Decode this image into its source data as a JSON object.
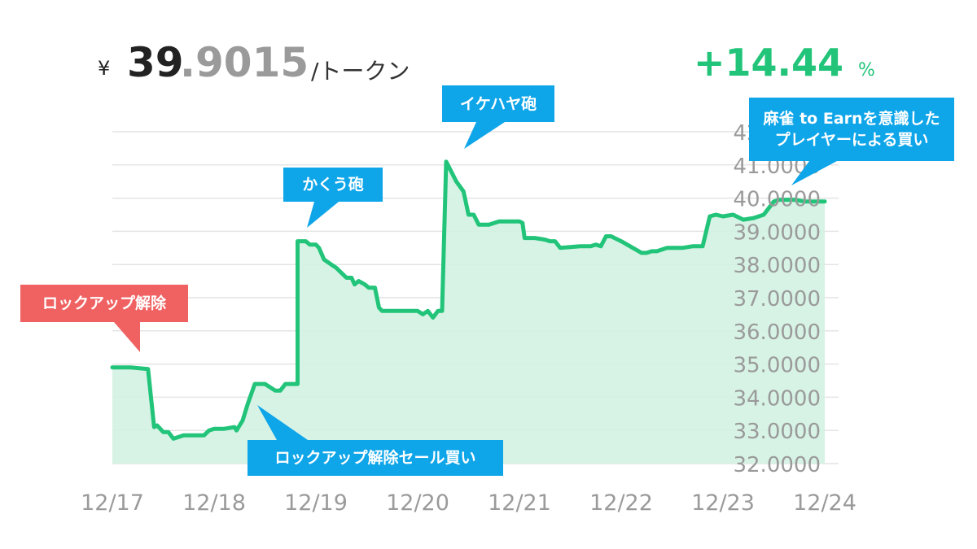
{
  "header": {
    "currency_symbol": "¥",
    "price_int": "39",
    "price_dec": ".9015",
    "unit": "/トークン",
    "change": "+14.44",
    "change_unit": "%"
  },
  "colors": {
    "line": "#22c47a",
    "area": "#d3f2e2",
    "grid": "#e4e4e4",
    "tick": "#9a9a9a",
    "callout_blue": "#0ea5e9",
    "callout_red": "#f06262"
  },
  "annotations": {
    "lockup": "ロックアップ解除",
    "lockup_sell": "ロックアップ解除セール買い",
    "kakuu": "かくう砲",
    "ikehaya": "イケハヤ砲",
    "mahjong_line1": "麻雀 to Earnを意識した",
    "mahjong_line2": "プレイヤーによる買い"
  },
  "chart_data": {
    "type": "area",
    "x_tick_labels": [
      "12/17",
      "12/18",
      "12/19",
      "12/20",
      "12/21",
      "12/22",
      "12/23",
      "12/24"
    ],
    "y_tick_labels": [
      "32.0000",
      "33.0000",
      "34.0000",
      "35.0000",
      "36.0000",
      "37.0000",
      "38.0000",
      "39.0000",
      "40.0000",
      "41.0000",
      "42.0000"
    ],
    "ylim": [
      32,
      42
    ],
    "xlim": [
      0,
      7
    ],
    "grid": true,
    "series": [
      {
        "x": [
          0,
          0.18,
          0.35,
          0.41,
          0.44,
          0.5,
          0.55,
          0.6,
          0.7,
          0.9,
          0.95,
          1.0,
          1.1,
          1.2,
          1.22,
          1.28,
          1.33,
          1.4,
          1.5,
          1.6,
          1.65,
          1.7,
          1.75,
          1.82,
          1.82,
          1.9,
          1.94,
          2.0,
          2.03,
          2.08,
          2.15,
          2.2,
          2.3,
          2.35,
          2.38,
          2.42,
          2.48,
          2.52,
          2.58,
          2.62,
          2.65,
          2.8,
          3.0,
          3.05,
          3.1,
          3.15,
          3.2,
          3.24,
          3.28,
          3.33,
          3.38,
          3.45,
          3.5,
          3.55,
          3.6,
          3.7,
          3.8,
          3.85,
          4.0,
          4.03,
          4.05,
          4.15,
          4.25,
          4.3,
          4.35,
          4.4,
          4.6,
          4.7,
          4.75,
          4.8,
          4.85,
          4.9,
          5.0,
          5.2,
          5.25,
          5.3,
          5.35,
          5.45,
          5.5,
          5.6,
          5.7,
          5.8,
          5.87,
          5.93,
          6.0,
          6.1,
          6.2,
          6.3,
          6.4,
          6.5,
          6.55,
          6.6,
          6.7,
          6.8,
          7.0
        ],
        "y": [
          34.9,
          34.9,
          34.85,
          33.1,
          33.15,
          32.95,
          32.95,
          32.75,
          32.85,
          32.85,
          33.0,
          33.05,
          33.05,
          33.1,
          33.0,
          33.3,
          33.8,
          34.4,
          34.4,
          34.2,
          34.2,
          34.4,
          34.4,
          34.4,
          38.7,
          38.7,
          38.6,
          38.6,
          38.5,
          38.15,
          38.0,
          37.9,
          37.6,
          37.6,
          37.4,
          37.5,
          37.4,
          37.3,
          37.3,
          36.7,
          36.6,
          36.6,
          36.6,
          36.5,
          36.6,
          36.4,
          36.6,
          36.6,
          41.1,
          40.8,
          40.5,
          40.2,
          39.5,
          39.5,
          39.2,
          39.2,
          39.3,
          39.3,
          39.3,
          39.25,
          38.8,
          38.8,
          38.75,
          38.7,
          38.7,
          38.5,
          38.55,
          38.55,
          38.6,
          38.55,
          38.85,
          38.85,
          38.7,
          38.35,
          38.35,
          38.4,
          38.4,
          38.5,
          38.5,
          38.5,
          38.55,
          38.55,
          39.45,
          39.5,
          39.45,
          39.5,
          39.35,
          39.4,
          39.5,
          39.9,
          39.95,
          39.95,
          39.95,
          39.9,
          39.9
        ]
      }
    ]
  }
}
